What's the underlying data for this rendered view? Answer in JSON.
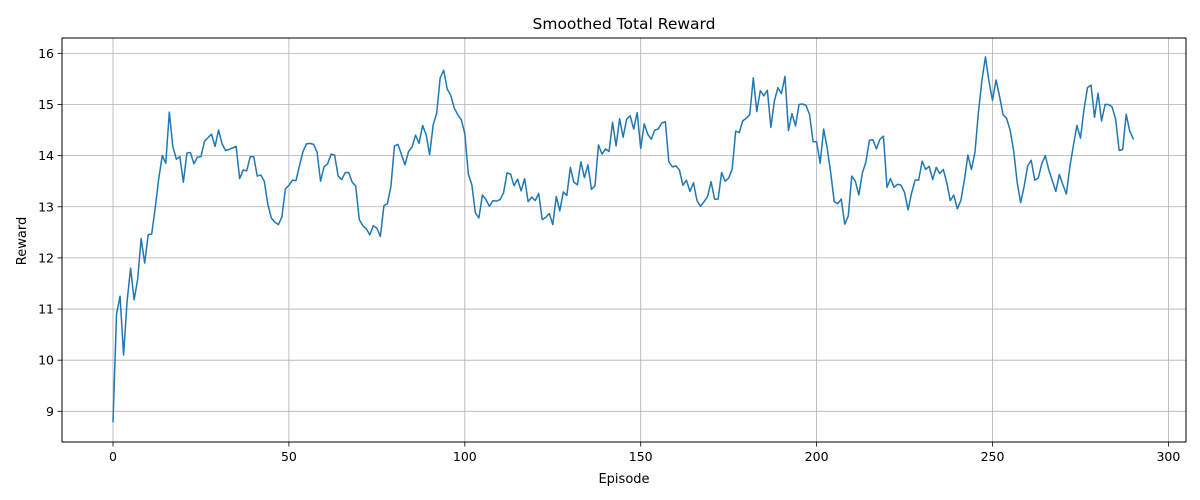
{
  "chart_data": {
    "type": "line",
    "title": "Smoothed Total Reward",
    "xlabel": "Episode",
    "ylabel": "Reward",
    "xlim": [
      -14.5,
      305
    ],
    "ylim": [
      8.4,
      16.3
    ],
    "xticks": [
      0,
      50,
      100,
      150,
      200,
      250,
      300
    ],
    "yticks": [
      9,
      10,
      11,
      12,
      13,
      14,
      15,
      16
    ],
    "grid": true,
    "line_color": "#1f77b4",
    "series": [
      {
        "values": [
          8.8,
          10.9,
          11.25,
          10.1,
          11.15,
          11.8,
          11.18,
          11.58,
          12.38,
          11.9,
          12.45,
          12.47,
          12.98,
          13.55,
          14.0,
          13.85,
          14.85,
          14.18,
          13.93,
          13.98,
          13.48,
          14.05,
          14.06,
          13.84,
          13.97,
          13.98,
          14.28,
          14.35,
          14.42,
          14.18,
          14.5,
          14.23,
          14.1,
          14.12,
          14.15,
          14.18,
          13.55,
          13.72,
          13.7,
          13.98,
          13.98,
          13.6,
          13.62,
          13.5,
          13.05,
          12.78,
          12.7,
          12.65,
          12.8,
          13.35,
          13.42,
          13.52,
          13.51,
          13.8,
          14.08,
          14.23,
          14.24,
          14.22,
          14.07,
          13.5,
          13.78,
          13.84,
          14.03,
          14.01,
          13.6,
          13.53,
          13.67,
          13.67,
          13.48,
          13.4,
          12.75,
          12.63,
          12.57,
          12.45,
          12.63,
          12.58,
          12.42,
          13.02,
          13.06,
          13.4,
          14.19,
          14.22,
          14.02,
          13.82,
          14.08,
          14.17,
          14.4,
          14.24,
          14.59,
          14.41,
          14.02,
          14.6,
          14.83,
          15.52,
          15.67,
          15.3,
          15.18,
          14.93,
          14.8,
          14.7,
          14.43,
          13.64,
          13.43,
          12.88,
          12.78,
          13.23,
          13.14,
          13.01,
          13.12,
          13.11,
          13.14,
          13.27,
          13.66,
          13.64,
          13.41,
          13.54,
          13.31,
          13.55,
          13.1,
          13.19,
          13.12,
          13.26,
          12.75,
          12.79,
          12.87,
          12.65,
          13.2,
          12.92,
          13.29,
          13.22,
          13.77,
          13.48,
          13.43,
          13.88,
          13.57,
          13.82,
          13.34,
          13.41,
          14.21,
          14.03,
          14.13,
          14.08,
          14.65,
          14.19,
          14.72,
          14.36,
          14.71,
          14.78,
          14.52,
          14.84,
          14.14,
          14.62,
          14.42,
          14.32,
          14.5,
          14.52,
          14.64,
          14.66,
          13.88,
          13.78,
          13.8,
          13.72,
          13.42,
          13.52,
          13.3,
          13.47,
          13.12,
          13.01,
          13.1,
          13.2,
          13.49,
          13.15,
          13.15,
          13.67,
          13.5,
          13.56,
          13.74,
          14.48,
          14.45,
          14.68,
          14.73,
          14.8,
          15.52,
          14.86,
          15.27,
          15.17,
          15.28,
          14.55,
          15.07,
          15.33,
          15.21,
          15.55,
          14.49,
          14.82,
          14.58,
          15.0,
          15.01,
          14.98,
          14.8,
          14.27,
          14.27,
          13.85,
          14.52,
          14.15,
          13.67,
          13.1,
          13.06,
          13.15,
          12.66,
          12.82,
          13.6,
          13.5,
          13.23,
          13.66,
          13.87,
          14.3,
          14.31,
          14.13,
          14.32,
          14.38,
          13.38,
          13.55,
          13.38,
          13.44,
          13.42,
          13.28,
          12.94,
          13.27,
          13.52,
          13.52,
          13.89,
          13.73,
          13.79,
          13.53,
          13.77,
          13.65,
          13.73,
          13.47,
          13.12,
          13.23,
          12.96,
          13.12,
          13.52,
          14.01,
          13.73,
          14.06,
          14.85,
          15.48,
          15.93,
          15.45,
          15.08,
          15.48,
          15.16,
          14.8,
          14.73,
          14.5,
          14.1,
          13.48,
          13.08,
          13.4,
          13.8,
          13.91,
          13.52,
          13.56,
          13.84,
          14.0,
          13.72,
          13.51,
          13.3,
          13.63,
          13.43,
          13.25,
          13.79,
          14.2,
          14.59,
          14.34,
          14.9,
          15.33,
          15.38,
          14.75,
          15.22,
          14.68,
          15.0,
          15.0,
          14.95,
          14.71,
          14.1,
          14.12,
          14.81,
          14.48,
          14.33
        ]
      }
    ]
  }
}
